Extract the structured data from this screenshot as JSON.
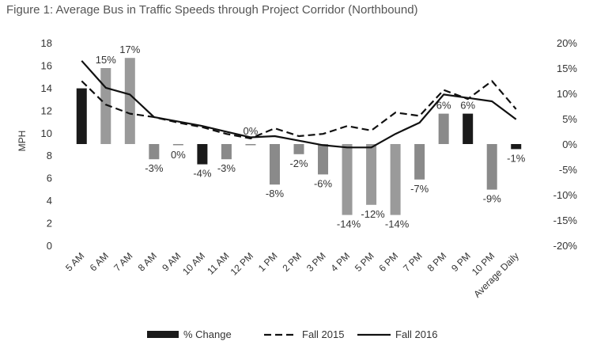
{
  "chart_data": {
    "type": "bar",
    "title": "Figure 1: Average Bus in Traffic Speeds through Project Corridor (Northbound)",
    "ylabel": "MPH",
    "ylim": [
      0,
      18
    ],
    "y2lim": [
      -20,
      20
    ],
    "y_ticks": [
      "0",
      "2",
      "4",
      "6",
      "8",
      "10",
      "12",
      "14",
      "16",
      "18"
    ],
    "y2_ticks": [
      "-20%",
      "-15%",
      "-10%",
      "-5%",
      "0%",
      "5%",
      "10%",
      "15%",
      "20%"
    ],
    "categories": [
      "5 AM",
      "6 AM",
      "7 AM",
      "8 AM",
      "9 AM",
      "10 AM",
      "11 AM",
      "12 PM",
      "1 PM",
      "2 PM",
      "3 PM",
      "4 PM",
      "5 PM",
      "6 PM",
      "7 PM",
      "8 PM",
      "9 PM",
      "10 PM",
      "Average Daily"
    ],
    "series": [
      {
        "name": "% Change",
        "kind": "bar",
        "axis": "right",
        "values": [
          11,
          15,
          17,
          -3,
          0,
          -4,
          -3,
          0,
          -8,
          -2,
          -6,
          -14,
          -12,
          -14,
          -7,
          6,
          6,
          -9,
          -1
        ],
        "labels": [
          "",
          "15%",
          "17%",
          "-3%",
          "0%",
          "-4%",
          "-3%",
          "0%",
          "-8%",
          "-2%",
          "-6%",
          "-14%",
          "-12%",
          "-14%",
          "-7%",
          "6%",
          "6%",
          "-9%",
          "-1%"
        ],
        "bar_colors": [
          "#1a1a1a",
          "#9a9a9a",
          "#9a9a9a",
          "#8a8a8a",
          "#8a8a8a",
          "#1a1a1a",
          "#8a8a8a",
          "#8a8a8a",
          "#8a8a8a",
          "#8a8a8a",
          "#8a8a8a",
          "#9a9a9a",
          "#9a9a9a",
          "#9a9a9a",
          "#8a8a8a",
          "#8a8a8a",
          "#1a1a1a",
          "#8a8a8a",
          "#1a1a1a"
        ]
      },
      {
        "name": "Fall 2015",
        "kind": "line",
        "style": "dashed",
        "axis": "left",
        "values": [
          14.6,
          12.5,
          11.7,
          11.4,
          10.9,
          10.5,
          9.9,
          9.5,
          10.4,
          9.7,
          9.9,
          10.6,
          10.2,
          11.8,
          11.5,
          13.8,
          13.0,
          14.6,
          12.1
        ]
      },
      {
        "name": "Fall 2016",
        "kind": "line",
        "style": "solid",
        "axis": "left",
        "values": [
          16.4,
          14.0,
          13.4,
          11.4,
          11.0,
          10.6,
          10.1,
          9.6,
          9.7,
          9.3,
          8.9,
          8.7,
          8.7,
          9.9,
          10.9,
          13.4,
          13.1,
          12.8,
          11.2
        ]
      }
    ],
    "legend_position": "bottom",
    "grid": false,
    "colors": {
      "bar_dark": "#1a1a1a",
      "bar_gray": "#8a8a8a",
      "line": "#111111",
      "text": "#333333"
    }
  }
}
